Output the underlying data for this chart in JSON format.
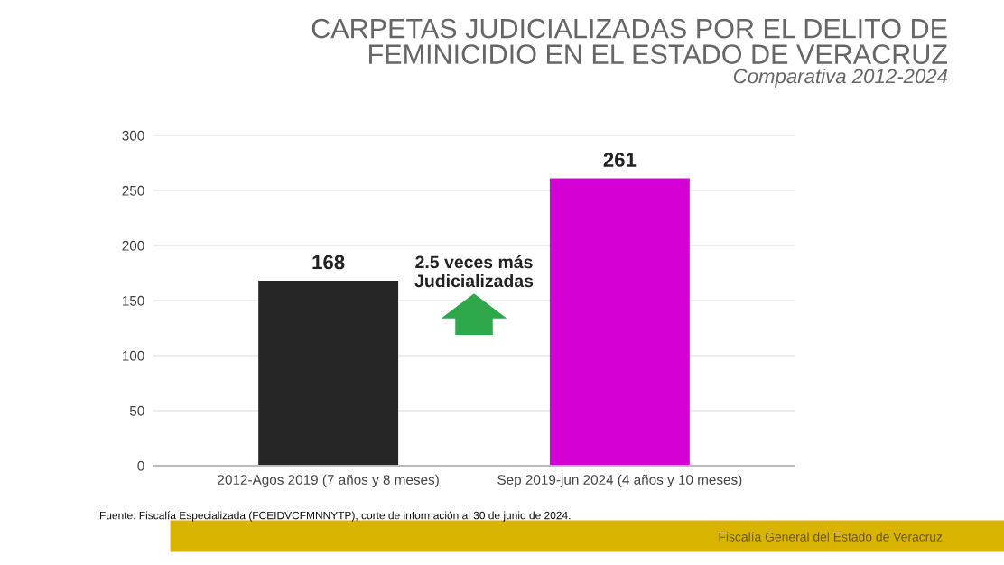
{
  "chart_data": {
    "type": "bar",
    "title": "CARPETAS JUDICIALIZADAS POR EL DELITO DE\nFEMINICIDIO EN EL ESTADO DE VERACRUZ",
    "subtitle": "Comparativa 2012-2024",
    "categories": [
      "2012-Agos 2019 (7 años y 8 meses)",
      "Sep 2019-jun 2024 (4 años y 10 meses)"
    ],
    "values": [
      168,
      261
    ],
    "colors": [
      "#262626",
      "#d400d4"
    ],
    "ylim": [
      0,
      300
    ],
    "yticks": [
      0,
      50,
      100,
      150,
      200,
      250,
      300
    ],
    "grid": "y",
    "data_labels": true,
    "annotations": [
      "2.5 veces más\nJudicializadas",
      "Fuente: Fiscalía Especializada (FCEIDVCFMNNYTP), corte de información al 30 de junio de 2024.",
      "Fiscalía General del Estado de Veracruz"
    ]
  }
}
